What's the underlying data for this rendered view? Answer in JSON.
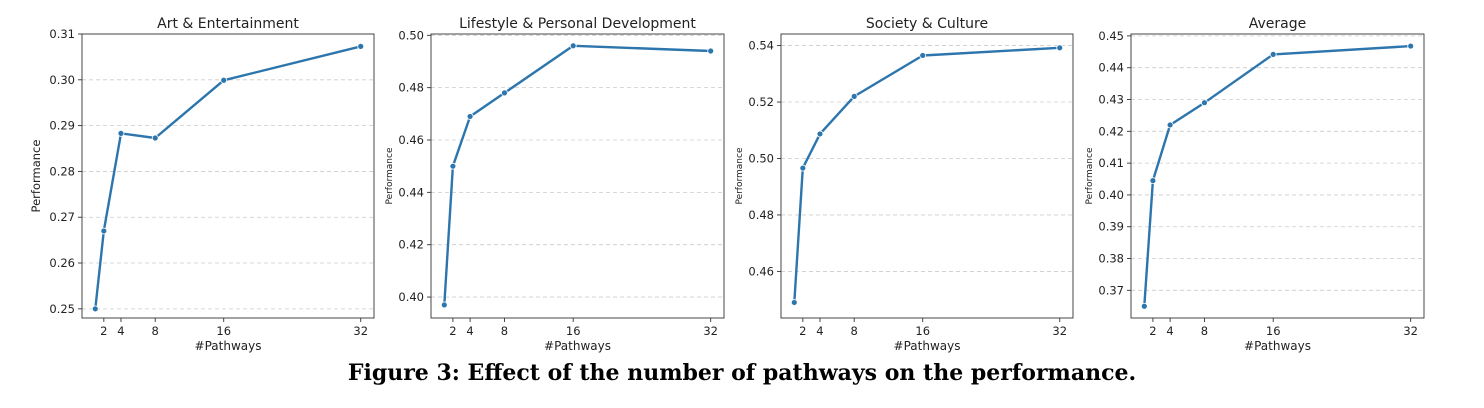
{
  "chart_data": [
    {
      "type": "line",
      "title": "Art & Entertainment",
      "xlabel": "#Pathways",
      "ylabel": "Performance",
      "x": [
        1,
        2,
        4,
        8,
        16,
        32
      ],
      "xticks": [
        2,
        4,
        8,
        16,
        32
      ],
      "values": [
        0.25,
        0.267,
        0.2883,
        0.2873,
        0.2999,
        0.3073
      ],
      "ylim": [
        0.248,
        0.31
      ],
      "yticks": [
        "0.25",
        "0.26",
        "0.27",
        "0.28",
        "0.29",
        "0.30",
        "0.31"
      ],
      "grid": true
    },
    {
      "type": "line",
      "title": "Lifestyle & Personal Development",
      "xlabel": "#Pathways",
      "ylabel": "Performance",
      "x": [
        1,
        2,
        4,
        8,
        16,
        32
      ],
      "xticks": [
        2,
        4,
        8,
        16,
        32
      ],
      "values": [
        0.397,
        0.45,
        0.469,
        0.478,
        0.496,
        0.494
      ],
      "ylim": [
        0.392,
        0.5005
      ],
      "yticks": [
        "0.40",
        "0.42",
        "0.44",
        "0.46",
        "0.48",
        "0.50"
      ],
      "grid": true
    },
    {
      "type": "line",
      "title": "Society & Culture",
      "xlabel": "#Pathways",
      "ylabel": "Performance",
      "x": [
        1,
        2,
        4,
        8,
        16,
        32
      ],
      "xticks": [
        2,
        4,
        8,
        16,
        32
      ],
      "values": [
        0.449,
        0.4966,
        0.5087,
        0.522,
        0.5365,
        0.5392
      ],
      "ylim": [
        0.4435,
        0.5441
      ],
      "yticks": [
        "0.46",
        "0.48",
        "0.50",
        "0.52",
        "0.54"
      ],
      "grid": true
    },
    {
      "type": "line",
      "title": "Average",
      "xlabel": "#Pathways",
      "ylabel": "Performance",
      "x": [
        1,
        2,
        4,
        8,
        16,
        32
      ],
      "xticks": [
        2,
        4,
        8,
        16,
        32
      ],
      "values": [
        0.365,
        0.4045,
        0.422,
        0.429,
        0.4442,
        0.4468
      ],
      "ylim": [
        0.3613,
        0.4506
      ],
      "yticks": [
        "0.37",
        "0.38",
        "0.39",
        "0.40",
        "0.41",
        "0.42",
        "0.43",
        "0.44",
        "0.45"
      ],
      "grid": true
    }
  ],
  "caption": "Figure 3: Effect of the number of pathways on the performance.",
  "colors": {
    "line": "#2c75ad",
    "grid": "#cccccc",
    "axis": "#333333"
  }
}
